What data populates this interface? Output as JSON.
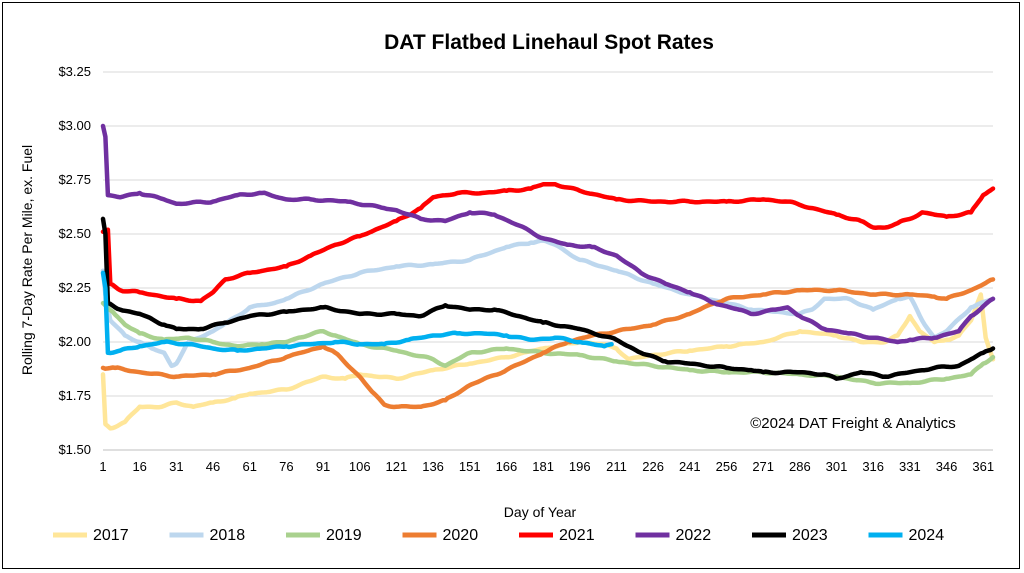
{
  "chart_data": {
    "type": "line",
    "title": "DAT Flatbed Linehaul Spot Rates",
    "xlabel": "Day of Year",
    "ylabel": "Rolling 7-Day Rate Per Mile, ex. Fuel",
    "annotation": "©2024 DAT Freight & Analytics",
    "xlim": [
      1,
      365
    ],
    "ylim": [
      1.5,
      3.25
    ],
    "x_ticks": [
      1,
      16,
      31,
      46,
      61,
      76,
      91,
      106,
      121,
      136,
      151,
      166,
      181,
      196,
      211,
      226,
      241,
      256,
      271,
      286,
      301,
      316,
      331,
      346,
      361
    ],
    "y_ticks": [
      "$1.50",
      "$1.75",
      "$2.00",
      "$2.25",
      "$2.50",
      "$2.75",
      "$3.00",
      "$3.25"
    ],
    "y_tick_values": [
      1.5,
      1.75,
      2.0,
      2.25,
      2.5,
      2.75,
      3.0,
      3.25
    ],
    "grid": "horizontal",
    "legend_position": "bottom",
    "series": [
      {
        "name": "2017",
        "color": "#FFE699",
        "points": [
          [
            1,
            1.85
          ],
          [
            2,
            1.62
          ],
          [
            4,
            1.6
          ],
          [
            10,
            1.63
          ],
          [
            16,
            1.7
          ],
          [
            25,
            1.7
          ],
          [
            31,
            1.72
          ],
          [
            38,
            1.7
          ],
          [
            46,
            1.72
          ],
          [
            55,
            1.74
          ],
          [
            61,
            1.76
          ],
          [
            76,
            1.78
          ],
          [
            86,
            1.82
          ],
          [
            91,
            1.84
          ],
          [
            100,
            1.83
          ],
          [
            106,
            1.85
          ],
          [
            121,
            1.83
          ],
          [
            136,
            1.87
          ],
          [
            151,
            1.9
          ],
          [
            166,
            1.93
          ],
          [
            181,
            1.97
          ],
          [
            196,
            2.0
          ],
          [
            205,
            1.99
          ],
          [
            211,
            1.97
          ],
          [
            216,
            1.92
          ],
          [
            226,
            1.94
          ],
          [
            241,
            1.96
          ],
          [
            256,
            1.98
          ],
          [
            271,
            2.0
          ],
          [
            286,
            2.05
          ],
          [
            301,
            2.03
          ],
          [
            311,
            2.0
          ],
          [
            321,
            2.0
          ],
          [
            326,
            2.03
          ],
          [
            331,
            2.12
          ],
          [
            335,
            2.05
          ],
          [
            341,
            2.0
          ],
          [
            346,
            2.01
          ],
          [
            351,
            2.03
          ],
          [
            356,
            2.1
          ],
          [
            360,
            2.22
          ],
          [
            362,
            2.02
          ],
          [
            365,
            1.92
          ]
        ]
      },
      {
        "name": "2018",
        "color": "#BDD7EE",
        "points": [
          [
            1,
            2.33
          ],
          [
            2,
            2.22
          ],
          [
            4,
            2.1
          ],
          [
            10,
            2.03
          ],
          [
            16,
            2.0
          ],
          [
            21,
            1.97
          ],
          [
            26,
            1.95
          ],
          [
            29,
            1.89
          ],
          [
            31,
            1.9
          ],
          [
            36,
            2.0
          ],
          [
            46,
            2.05
          ],
          [
            56,
            2.12
          ],
          [
            61,
            2.16
          ],
          [
            71,
            2.18
          ],
          [
            76,
            2.2
          ],
          [
            91,
            2.27
          ],
          [
            106,
            2.32
          ],
          [
            121,
            2.35
          ],
          [
            136,
            2.36
          ],
          [
            151,
            2.38
          ],
          [
            166,
            2.44
          ],
          [
            176,
            2.46
          ],
          [
            181,
            2.47
          ],
          [
            186,
            2.45
          ],
          [
            196,
            2.38
          ],
          [
            211,
            2.33
          ],
          [
            226,
            2.27
          ],
          [
            241,
            2.22
          ],
          [
            256,
            2.18
          ],
          [
            266,
            2.15
          ],
          [
            276,
            2.14
          ],
          [
            286,
            2.13
          ],
          [
            291,
            2.15
          ],
          [
            296,
            2.2
          ],
          [
            306,
            2.2
          ],
          [
            316,
            2.15
          ],
          [
            326,
            2.2
          ],
          [
            331,
            2.21
          ],
          [
            336,
            2.1
          ],
          [
            341,
            2.02
          ],
          [
            346,
            2.05
          ],
          [
            356,
            2.16
          ],
          [
            365,
            2.2
          ]
        ]
      },
      {
        "name": "2019",
        "color": "#A9D18E",
        "points": [
          [
            1,
            2.18
          ],
          [
            5,
            2.14
          ],
          [
            10,
            2.08
          ],
          [
            16,
            2.04
          ],
          [
            26,
            2.01
          ],
          [
            36,
            2.02
          ],
          [
            46,
            2.0
          ],
          [
            56,
            1.98
          ],
          [
            66,
            1.99
          ],
          [
            76,
            2.0
          ],
          [
            81,
            2.02
          ],
          [
            91,
            2.05
          ],
          [
            96,
            2.03
          ],
          [
            106,
            1.99
          ],
          [
            121,
            1.96
          ],
          [
            136,
            1.92
          ],
          [
            141,
            1.89
          ],
          [
            151,
            1.95
          ],
          [
            166,
            1.97
          ],
          [
            181,
            1.95
          ],
          [
            196,
            1.94
          ],
          [
            211,
            1.91
          ],
          [
            226,
            1.89
          ],
          [
            241,
            1.87
          ],
          [
            256,
            1.86
          ],
          [
            271,
            1.86
          ],
          [
            286,
            1.85
          ],
          [
            301,
            1.84
          ],
          [
            316,
            1.81
          ],
          [
            331,
            1.81
          ],
          [
            346,
            1.83
          ],
          [
            356,
            1.85
          ],
          [
            361,
            1.9
          ],
          [
            365,
            1.93
          ]
        ]
      },
      {
        "name": "2020",
        "color": "#ED7D31",
        "points": [
          [
            1,
            1.88
          ],
          [
            6,
            1.88
          ],
          [
            16,
            1.86
          ],
          [
            31,
            1.84
          ],
          [
            46,
            1.85
          ],
          [
            61,
            1.88
          ],
          [
            76,
            1.93
          ],
          [
            91,
            1.98
          ],
          [
            96,
            1.95
          ],
          [
            106,
            1.84
          ],
          [
            111,
            1.77
          ],
          [
            116,
            1.71
          ],
          [
            121,
            1.7
          ],
          [
            131,
            1.7
          ],
          [
            141,
            1.73
          ],
          [
            151,
            1.8
          ],
          [
            166,
            1.87
          ],
          [
            181,
            1.95
          ],
          [
            191,
            2.0
          ],
          [
            201,
            2.03
          ],
          [
            211,
            2.05
          ],
          [
            226,
            2.08
          ],
          [
            241,
            2.13
          ],
          [
            251,
            2.18
          ],
          [
            256,
            2.2
          ],
          [
            271,
            2.22
          ],
          [
            286,
            2.24
          ],
          [
            301,
            2.24
          ],
          [
            316,
            2.22
          ],
          [
            331,
            2.22
          ],
          [
            341,
            2.21
          ],
          [
            346,
            2.2
          ],
          [
            356,
            2.24
          ],
          [
            365,
            2.29
          ]
        ]
      },
      {
        "name": "2021",
        "color": "#FF0000",
        "points": [
          [
            1,
            2.51
          ],
          [
            3,
            2.52
          ],
          [
            4,
            2.27
          ],
          [
            8,
            2.24
          ],
          [
            16,
            2.23
          ],
          [
            31,
            2.2
          ],
          [
            41,
            2.19
          ],
          [
            46,
            2.23
          ],
          [
            51,
            2.29
          ],
          [
            61,
            2.32
          ],
          [
            76,
            2.35
          ],
          [
            86,
            2.4
          ],
          [
            96,
            2.45
          ],
          [
            106,
            2.49
          ],
          [
            121,
            2.56
          ],
          [
            131,
            2.62
          ],
          [
            136,
            2.67
          ],
          [
            146,
            2.69
          ],
          [
            156,
            2.69
          ],
          [
            166,
            2.7
          ],
          [
            176,
            2.71
          ],
          [
            181,
            2.73
          ],
          [
            186,
            2.73
          ],
          [
            196,
            2.7
          ],
          [
            211,
            2.66
          ],
          [
            226,
            2.65
          ],
          [
            241,
            2.65
          ],
          [
            256,
            2.65
          ],
          [
            271,
            2.66
          ],
          [
            281,
            2.65
          ],
          [
            291,
            2.62
          ],
          [
            301,
            2.59
          ],
          [
            311,
            2.56
          ],
          [
            316,
            2.53
          ],
          [
            321,
            2.53
          ],
          [
            326,
            2.55
          ],
          [
            331,
            2.57
          ],
          [
            336,
            2.6
          ],
          [
            346,
            2.58
          ],
          [
            356,
            2.6
          ],
          [
            361,
            2.68
          ],
          [
            365,
            2.71
          ]
        ]
      },
      {
        "name": "2022",
        "color": "#7030A0",
        "points": [
          [
            1,
            3.0
          ],
          [
            2,
            2.95
          ],
          [
            3,
            2.68
          ],
          [
            8,
            2.67
          ],
          [
            16,
            2.69
          ],
          [
            26,
            2.66
          ],
          [
            31,
            2.64
          ],
          [
            46,
            2.65
          ],
          [
            56,
            2.68
          ],
          [
            66,
            2.69
          ],
          [
            76,
            2.66
          ],
          [
            86,
            2.66
          ],
          [
            101,
            2.65
          ],
          [
            116,
            2.62
          ],
          [
            121,
            2.61
          ],
          [
            131,
            2.57
          ],
          [
            141,
            2.56
          ],
          [
            151,
            2.6
          ],
          [
            161,
            2.59
          ],
          [
            171,
            2.54
          ],
          [
            181,
            2.48
          ],
          [
            191,
            2.45
          ],
          [
            201,
            2.44
          ],
          [
            211,
            2.4
          ],
          [
            221,
            2.32
          ],
          [
            231,
            2.27
          ],
          [
            241,
            2.23
          ],
          [
            251,
            2.18
          ],
          [
            261,
            2.15
          ],
          [
            266,
            2.13
          ],
          [
            276,
            2.15
          ],
          [
            281,
            2.16
          ],
          [
            286,
            2.12
          ],
          [
            296,
            2.06
          ],
          [
            306,
            2.04
          ],
          [
            316,
            2.02
          ],
          [
            326,
            2.0
          ],
          [
            331,
            2.01
          ],
          [
            341,
            2.02
          ],
          [
            351,
            2.05
          ],
          [
            356,
            2.12
          ],
          [
            365,
            2.2
          ]
        ]
      },
      {
        "name": "2023",
        "color": "#000000",
        "points": [
          [
            1,
            2.57
          ],
          [
            2,
            2.5
          ],
          [
            3,
            2.18
          ],
          [
            8,
            2.15
          ],
          [
            16,
            2.13
          ],
          [
            26,
            2.08
          ],
          [
            31,
            2.06
          ],
          [
            41,
            2.06
          ],
          [
            51,
            2.09
          ],
          [
            61,
            2.12
          ],
          [
            76,
            2.14
          ],
          [
            91,
            2.16
          ],
          [
            106,
            2.13
          ],
          [
            121,
            2.13
          ],
          [
            131,
            2.12
          ],
          [
            141,
            2.17
          ],
          [
            151,
            2.15
          ],
          [
            161,
            2.15
          ],
          [
            171,
            2.12
          ],
          [
            181,
            2.09
          ],
          [
            196,
            2.06
          ],
          [
            211,
            2.01
          ],
          [
            221,
            1.95
          ],
          [
            231,
            1.91
          ],
          [
            241,
            1.9
          ],
          [
            256,
            1.88
          ],
          [
            266,
            1.87
          ],
          [
            271,
            1.86
          ],
          [
            286,
            1.86
          ],
          [
            296,
            1.85
          ],
          [
            301,
            1.83
          ],
          [
            311,
            1.86
          ],
          [
            321,
            1.84
          ],
          [
            331,
            1.86
          ],
          [
            341,
            1.88
          ],
          [
            351,
            1.89
          ],
          [
            356,
            1.92
          ],
          [
            361,
            1.95
          ],
          [
            365,
            1.97
          ]
        ]
      },
      {
        "name": "2024",
        "color": "#00B0F0",
        "points": [
          [
            1,
            2.32
          ],
          [
            2,
            2.25
          ],
          [
            3,
            1.95
          ],
          [
            8,
            1.96
          ],
          [
            16,
            1.98
          ],
          [
            26,
            2.0
          ],
          [
            36,
            1.99
          ],
          [
            46,
            1.97
          ],
          [
            56,
            1.96
          ],
          [
            66,
            1.97
          ],
          [
            76,
            1.98
          ],
          [
            86,
            1.99
          ],
          [
            96,
            2.0
          ],
          [
            106,
            1.99
          ],
          [
            116,
            1.99
          ],
          [
            126,
            2.01
          ],
          [
            136,
            2.03
          ],
          [
            146,
            2.04
          ],
          [
            156,
            2.04
          ],
          [
            166,
            2.03
          ],
          [
            176,
            2.01
          ],
          [
            186,
            2.02
          ],
          [
            196,
            2.0
          ],
          [
            206,
            1.98
          ],
          [
            209,
            1.99
          ]
        ]
      }
    ]
  }
}
